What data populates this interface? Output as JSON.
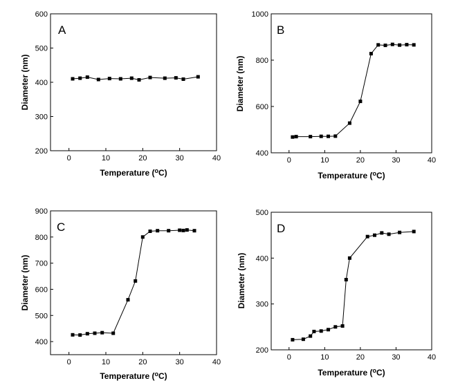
{
  "chart_data": [
    {
      "type": "line",
      "panel": "A",
      "xlabel": "Temperature (°C)",
      "ylabel": "Diameter (nm)",
      "xlim": [
        -5,
        40
      ],
      "ylim": [
        200,
        600
      ],
      "xticks": [
        0,
        10,
        20,
        30,
        40
      ],
      "yticks": [
        200,
        300,
        400,
        500,
        600
      ],
      "x": [
        1,
        3,
        5,
        8,
        11,
        14,
        17,
        19,
        22,
        26,
        29,
        31,
        35
      ],
      "y": [
        410,
        412,
        415,
        408,
        411,
        410,
        412,
        407,
        414,
        412,
        413,
        409,
        416
      ]
    },
    {
      "type": "line",
      "panel": "B",
      "xlabel": "Temperature (°C)",
      "ylabel": "Diameter (nm)",
      "xlim": [
        -5,
        40
      ],
      "ylim": [
        400,
        1000
      ],
      "xticks": [
        0,
        10,
        20,
        30,
        40
      ],
      "yticks": [
        400,
        600,
        800,
        1000
      ],
      "x": [
        1,
        2,
        6,
        9,
        11,
        13,
        17,
        20,
        23,
        25,
        27,
        29,
        31,
        33,
        35
      ],
      "y": [
        468,
        470,
        470,
        471,
        471,
        472,
        528,
        622,
        828,
        866,
        864,
        868,
        865,
        867,
        866
      ]
    },
    {
      "type": "line",
      "panel": "C",
      "xlabel": "Temperature (°C)",
      "ylabel": "Diameter (nm)",
      "xlim": [
        -5,
        40
      ],
      "ylim": [
        350,
        900
      ],
      "xticks": [
        0,
        10,
        20,
        30,
        40
      ],
      "yticks": [
        400,
        500,
        600,
        700,
        800,
        900
      ],
      "x": [
        1,
        3,
        5,
        7,
        9,
        12,
        16,
        18,
        20,
        22,
        24,
        27,
        30,
        31,
        32,
        34
      ],
      "y": [
        426,
        425,
        430,
        432,
        434,
        432,
        560,
        632,
        800,
        822,
        824,
        824,
        826,
        825,
        827,
        824
      ]
    },
    {
      "type": "line",
      "panel": "D",
      "xlabel": "Temperature (°C)",
      "ylabel": "Diameter (nm)",
      "xlim": [
        -5,
        40
      ],
      "ylim": [
        200,
        500
      ],
      "xticks": [
        0,
        10,
        20,
        30,
        40
      ],
      "yticks": [
        200,
        300,
        400,
        500
      ],
      "x": [
        1,
        4,
        6,
        7,
        9,
        11,
        13,
        15,
        16,
        17,
        22,
        24,
        26,
        28,
        31,
        35
      ],
      "y": [
        222,
        223,
        230,
        240,
        241,
        244,
        250,
        252,
        353,
        400,
        447,
        450,
        455,
        452,
        456,
        458
      ]
    }
  ]
}
